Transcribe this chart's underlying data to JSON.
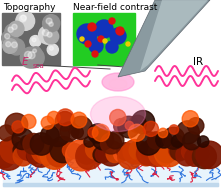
{
  "bg_color": "#ffffff",
  "topography_label": "Topography",
  "nearfield_label": "Near-field contrast",
  "esca_label": "E",
  "esca_sub": "sca",
  "ir_label": "IR",
  "wave_color": "#ff3399",
  "polymer_red": "#dd2244",
  "polymer_blue": "#3377dd",
  "base_color": "#ddeeff",
  "label_fontsize": 6.5,
  "label_fontsize_sm": 5
}
